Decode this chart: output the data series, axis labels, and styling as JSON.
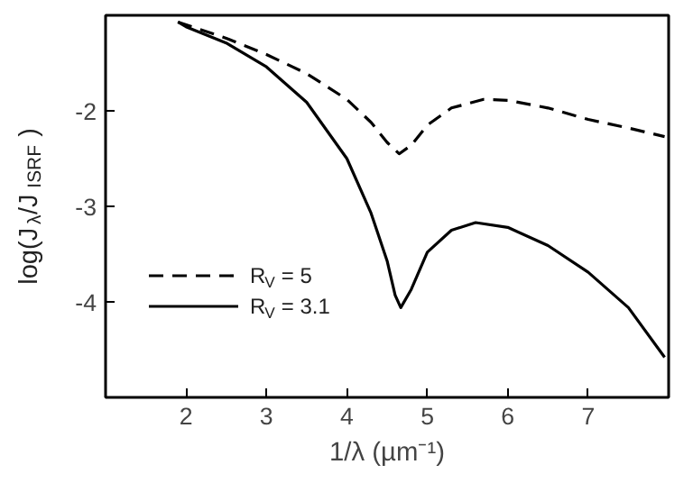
{
  "chart_data": {
    "type": "line",
    "xlabel": "1/λ (µm⁻¹)",
    "ylabel": "log(J$_{λ}$/J$_{ISRF}$)",
    "xlim": [
      1,
      8
    ],
    "ylim": [
      -5,
      -1
    ],
    "xticks": [
      2,
      3,
      4,
      5,
      6,
      7
    ],
    "yticks": [
      -2,
      -3,
      -4
    ],
    "grid": false,
    "legend": "bottom left",
    "series": [
      {
        "name": "R$_{V}$ = 5",
        "color": "#000000",
        "line_style": "dashed",
        "x": [
          1.9,
          2.5,
          3,
          3.5,
          4,
          4.3,
          4.5,
          4.65,
          4.8,
          5,
          5.3,
          5.7,
          6,
          6.5,
          7,
          7.5,
          7.95
        ],
        "values": [
          -1.07,
          -1.24,
          -1.41,
          -1.61,
          -1.88,
          -2.12,
          -2.33,
          -2.45,
          -2.36,
          -2.15,
          -1.97,
          -1.88,
          -1.89,
          -1.97,
          -2.09,
          -2.18,
          -2.27
        ]
      },
      {
        "name": "R$_{V}$ = 3.1",
        "color": "#000000",
        "line_style": "solid",
        "x": [
          1.9,
          2,
          2.5,
          3,
          3.5,
          4,
          4.3,
          4.5,
          4.6,
          4.67,
          4.8,
          5,
          5.3,
          5.6,
          6,
          6.5,
          7,
          7.5,
          7.95
        ],
        "values": [
          -1.07,
          -1.12,
          -1.29,
          -1.54,
          -1.91,
          -2.5,
          -3.07,
          -3.57,
          -3.93,
          -4.06,
          -3.87,
          -3.48,
          -3.25,
          -3.17,
          -3.22,
          -3.41,
          -3.69,
          -4.06,
          -4.58
        ]
      }
    ]
  }
}
